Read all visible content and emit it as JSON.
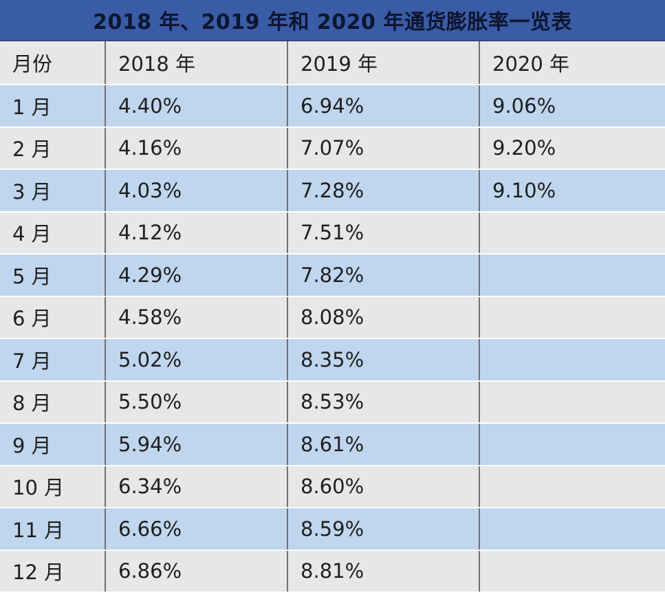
{
  "title": "2018 年、2019 年和 2020 年通货膨胀率一览表",
  "headers": [
    "月份",
    "2018 年",
    "2019 年",
    "2020 年"
  ],
  "rows": [
    {
      "month": "1 月",
      "y2018": "4.40%",
      "y2019": "6.94%",
      "y2020": "9.06%"
    },
    {
      "month": "2 月",
      "y2018": "4.16%",
      "y2019": "7.07%",
      "y2020": "9.20%"
    },
    {
      "month": "3 月",
      "y2018": "4.03%",
      "y2019": "7.28%",
      "y2020": "9.10%"
    },
    {
      "month": "4 月",
      "y2018": "4.12%",
      "y2019": "7.51%",
      "y2020": ""
    },
    {
      "month": "5 月",
      "y2018": "4.29%",
      "y2019": "7.82%",
      "y2020": ""
    },
    {
      "month": "6 月",
      "y2018": "4.58%",
      "y2019": "8.08%",
      "y2020": ""
    },
    {
      "month": "7 月",
      "y2018": "5.02%",
      "y2019": "8.35%",
      "y2020": ""
    },
    {
      "month": "8 月",
      "y2018": "5.50%",
      "y2019": "8.53%",
      "y2020": ""
    },
    {
      "month": "9 月",
      "y2018": "5.94%",
      "y2019": "8.61%",
      "y2020": ""
    },
    {
      "month": "10 月",
      "y2018": "6.34%",
      "y2019": "8.60%",
      "y2020": ""
    },
    {
      "month": "11 月",
      "y2018": "6.66%",
      "y2019": "8.59%",
      "y2020": ""
    },
    {
      "month": "12 月",
      "y2018": "6.86%",
      "y2019": "8.81%",
      "y2020": ""
    }
  ],
  "colors": {
    "title_background": "#3a5ba5",
    "row_blue": "#c0d6ee",
    "row_gray": "#e7e7e7"
  }
}
